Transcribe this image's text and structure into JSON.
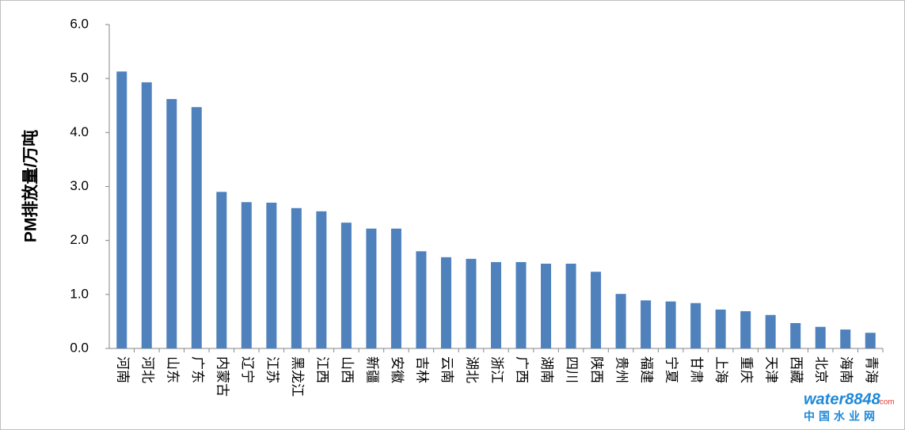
{
  "chart_data": {
    "type": "bar",
    "y_label": "PM排放量/万吨",
    "categories": [
      "河南",
      "河北",
      "山东",
      "广东",
      "内蒙古",
      "辽宁",
      "江苏",
      "黑龙江",
      "江西",
      "山西",
      "新疆",
      "安徽",
      "吉林",
      "云南",
      "湖北",
      "浙江",
      "广西",
      "湖南",
      "四川",
      "陕西",
      "贵州",
      "福建",
      "宁夏",
      "甘肃",
      "上海",
      "重庆",
      "天津",
      "西藏",
      "北京",
      "海南",
      "青海"
    ],
    "values": [
      5.13,
      4.93,
      4.62,
      4.47,
      2.9,
      2.71,
      2.7,
      2.6,
      2.54,
      2.33,
      2.22,
      2.22,
      1.8,
      1.69,
      1.66,
      1.6,
      1.6,
      1.57,
      1.57,
      1.42,
      1.01,
      0.89,
      0.87,
      0.84,
      0.72,
      0.69,
      0.62,
      0.47,
      0.4,
      0.35,
      0.29
    ],
    "color": "#4f81bd",
    "ylim": [
      0,
      6
    ],
    "yticks": [
      {
        "value": 0,
        "label": "0.0"
      },
      {
        "value": 1,
        "label": "1.0"
      },
      {
        "value": 2,
        "label": "2.0"
      },
      {
        "value": 3,
        "label": "3.0"
      },
      {
        "value": 4,
        "label": "4.0"
      },
      {
        "value": 5,
        "label": "5.0"
      },
      {
        "value": 6,
        "label": "6.0"
      }
    ],
    "grid": false
  },
  "watermark": {
    "brand": "water8848",
    "domain": ".com",
    "site": "中国水业网"
  }
}
